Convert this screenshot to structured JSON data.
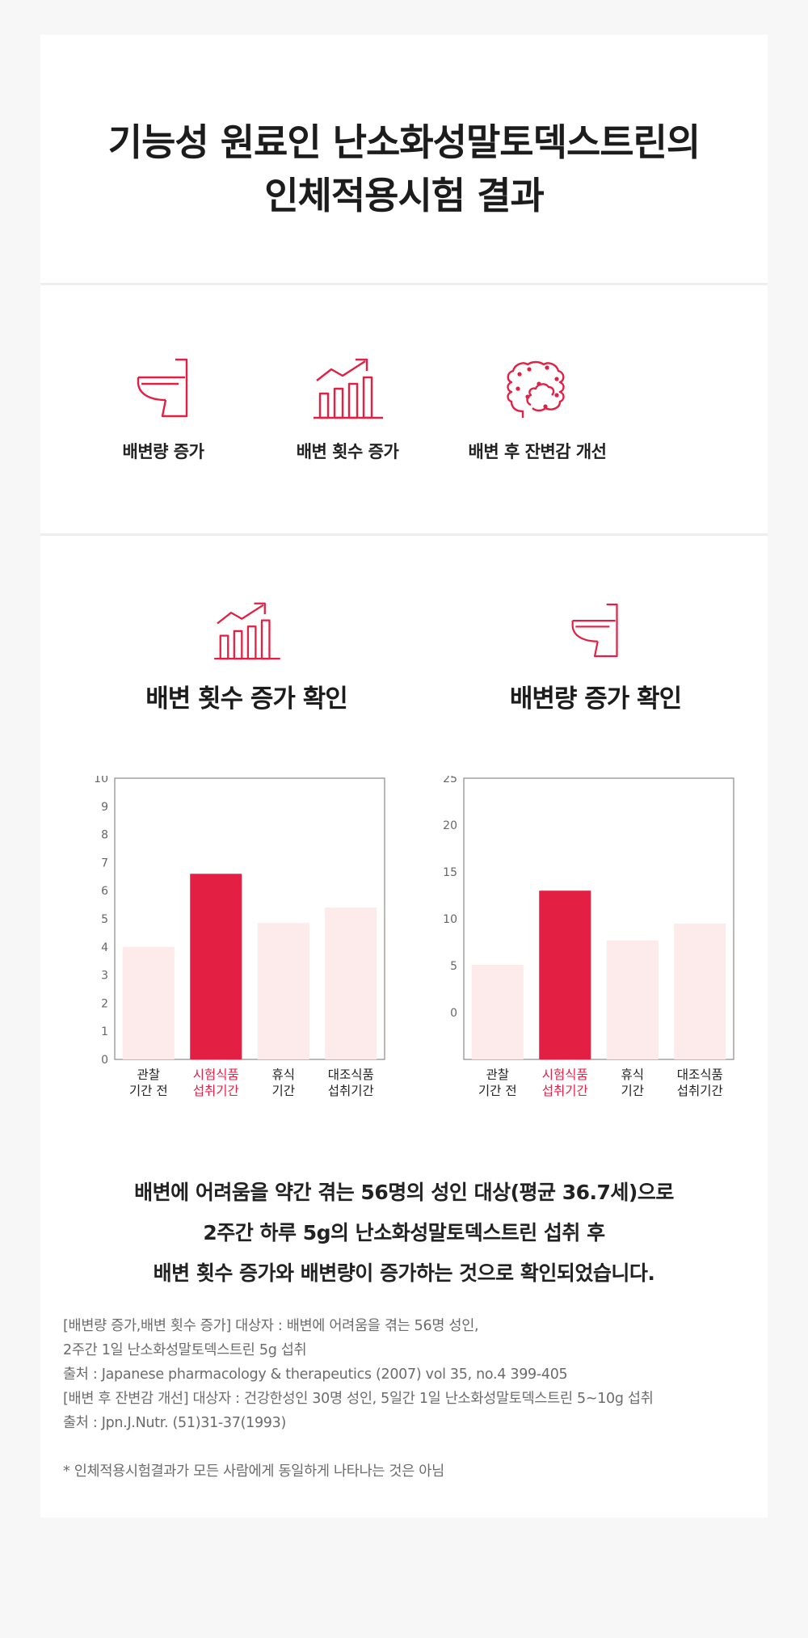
{
  "title_lines": [
    "기능성 원료인 난소화성말토덱스트린의",
    "인체적용시험 결과"
  ],
  "benefits": [
    {
      "label": "배변량 증가",
      "icon": "toilet-icon"
    },
    {
      "label": "배변 횟수 증가",
      "icon": "rising-bar-chart-icon"
    },
    {
      "label": "배변 후 잔변감 개선",
      "icon": "intestine-icon"
    }
  ],
  "colors": {
    "accent": "#e41f44",
    "light": "#fdeaea",
    "axis": "#8a8a8a"
  },
  "chart_data": [
    {
      "type": "bar",
      "title": "배변 횟수 증가 확인",
      "icon": "rising-bar-chart-icon",
      "categories": [
        [
          "관찰",
          "기간 전"
        ],
        [
          "시험식품",
          "섭취기간"
        ],
        [
          "휴식",
          "기간"
        ],
        [
          "대조식품",
          "섭취기간"
        ]
      ],
      "values": [
        4.0,
        6.6,
        4.85,
        5.4
      ],
      "highlight_index": 1,
      "yticks": [
        "0",
        "1",
        "2",
        "3",
        "4",
        "5",
        "6",
        "7",
        "8",
        "9",
        "10"
      ],
      "ylim": [
        0,
        10
      ]
    },
    {
      "type": "bar",
      "title": "배변량 증가 확인",
      "icon": "toilet-icon",
      "categories": [
        [
          "관찰",
          "기간 전"
        ],
        [
          "시험식품",
          "섭취기간"
        ],
        [
          "휴식",
          "기간"
        ],
        [
          "대조식품",
          "섭취기간"
        ]
      ],
      "values": [
        5.1,
        13.0,
        7.7,
        9.5
      ],
      "highlight_index": 1,
      "yticks": [
        "0",
        "5",
        "10",
        "15",
        "20",
        "25"
      ],
      "ylim": [
        -5,
        25
      ]
    }
  ],
  "summary_lines": [
    "배변에 어려움을 약간 겪는 56명의 성인 대상(평균 36.7세)으로",
    "2주간 하루 5g의 난소화성말토덱스트린 섭취 후",
    "배변 횟수 증가와 배변량이 증가하는 것으로 확인되었습니다."
  ],
  "notes": [
    "[배변량 증가,배변 횟수 증가] 대상자 : 배변에 어려움을 겪는 56명 성인,",
    "2주간 1일 난소화성말토덱스트린 5g 섭취",
    "출처 : Japanese pharmacology & therapeutics (2007) vol 35, no.4 399-405",
    "[배변 후 잔변감 개선] 대상자 : 건강한성인 30명 성인, 5일간 1일 난소화성말토덱스트린 5~10g 섭취",
    "출처 : Jpn.J.Nutr. (51)31-37(1993)"
  ],
  "disclaimer": "* 인체적용시험결과가 모든 사람에게 동일하게 나타나는 것은 아님"
}
